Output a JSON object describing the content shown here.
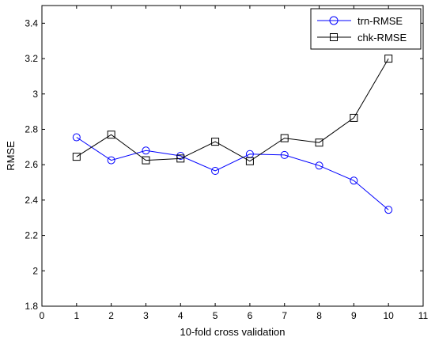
{
  "chart_data": {
    "type": "line",
    "x": [
      1,
      2,
      3,
      4,
      5,
      6,
      7,
      8,
      9,
      10
    ],
    "series": [
      {
        "name": "trn-RMSE",
        "color": "#0000ff",
        "marker": "circle",
        "values": [
          2.755,
          2.625,
          2.68,
          2.65,
          2.565,
          2.66,
          2.655,
          2.595,
          2.51,
          2.345
        ]
      },
      {
        "name": "chk-RMSE",
        "color": "#000000",
        "marker": "square",
        "values": [
          2.645,
          2.77,
          2.625,
          2.635,
          2.73,
          2.62,
          2.75,
          2.725,
          2.865,
          3.2
        ]
      }
    ],
    "xlabel": "10-fold cross validation",
    "ylabel": "RMSE",
    "xlim": [
      0,
      11
    ],
    "ylim": [
      1.8,
      3.5
    ],
    "xticks": [
      0,
      1,
      2,
      3,
      4,
      5,
      6,
      7,
      8,
      9,
      10,
      11
    ],
    "xtick_labels": [
      "0",
      "1",
      "2",
      "3",
      "4",
      "5",
      "6",
      "7",
      "8",
      "9",
      "10",
      "11"
    ],
    "yticks": [
      1.8,
      2,
      2.2,
      2.4,
      2.6,
      2.8,
      3,
      3.2,
      3.4
    ],
    "ytick_labels": [
      "1.8",
      "2",
      "2.2",
      "2.4",
      "2.6",
      "2.8",
      "3",
      "3.2",
      "3.4"
    ],
    "grid": false,
    "legend_position": "top-right"
  }
}
